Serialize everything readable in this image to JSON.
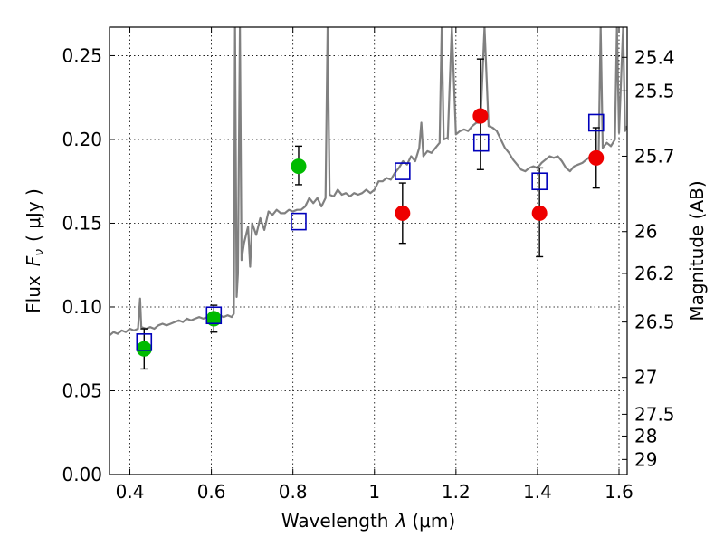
{
  "chart_data": {
    "type": "scatter",
    "xlabel_text": "Wavelength",
    "xlabel_symbol": "λ",
    "xlabel_unit": "(μm)",
    "ylabel_text": "Flux",
    "ylabel_symbol": "F",
    "ylabel_sub": "ν",
    "ylabel_unit": "( μJy )",
    "y2label": "Magnitude (AB)",
    "xlim": [
      0.35,
      1.62
    ],
    "ylim": [
      0.0,
      0.267
    ],
    "xticks": [
      0.4,
      0.6,
      0.8,
      1.0,
      1.2,
      1.4,
      1.6
    ],
    "xtick_labels": [
      "0.4",
      "0.6",
      "0.8",
      "1",
      "1.2",
      "1.4",
      "1.6"
    ],
    "yticks": [
      0.0,
      0.05,
      0.1,
      0.15,
      0.2,
      0.25
    ],
    "ytick_labels": [
      "0.00",
      "0.05",
      "0.10",
      "0.15",
      "0.20",
      "0.25"
    ],
    "mag_ticks": [
      {
        "label": "25.4",
        "flux": 0.249
      },
      {
        "label": "25.5",
        "flux": 0.229
      },
      {
        "label": "25.7",
        "flux": 0.19
      },
      {
        "label": "26",
        "flux": 0.145
      },
      {
        "label": "26.2",
        "flux": 0.12
      },
      {
        "label": "26.5",
        "flux": 0.091
      },
      {
        "label": "27",
        "flux": 0.058
      },
      {
        "label": "27.5",
        "flux": 0.036
      },
      {
        "label": "28",
        "flux": 0.023
      },
      {
        "label": "29",
        "flux": 0.009
      }
    ],
    "grid": true,
    "series": [
      {
        "marker": "circle",
        "color": "#00bb00",
        "points": [
          {
            "x": 0.435,
            "y": 0.075,
            "yerr_low": 0.063,
            "yerr_high": 0.087
          },
          {
            "x": 0.606,
            "y": 0.093,
            "yerr_low": 0.085,
            "yerr_high": 0.101
          },
          {
            "x": 0.814,
            "y": 0.184,
            "yerr_low": 0.173,
            "yerr_high": 0.196
          }
        ]
      },
      {
        "marker": "circle",
        "color": "#ee0000",
        "points": [
          {
            "x": 1.069,
            "y": 0.156,
            "yerr_low": 0.138,
            "yerr_high": 0.174
          },
          {
            "x": 1.26,
            "y": 0.214,
            "yerr_low": 0.182,
            "yerr_high": 0.248
          },
          {
            "x": 1.405,
            "y": 0.156,
            "yerr_low": 0.13,
            "yerr_high": 0.183
          },
          {
            "x": 1.544,
            "y": 0.189,
            "yerr_low": 0.171,
            "yerr_high": 0.207
          }
        ]
      },
      {
        "marker": "open-square",
        "color": "#0000bb",
        "points": [
          {
            "x": 0.435,
            "y": 0.079
          },
          {
            "x": 0.606,
            "y": 0.095
          },
          {
            "x": 0.814,
            "y": 0.151
          },
          {
            "x": 1.069,
            "y": 0.181
          },
          {
            "x": 1.262,
            "y": 0.198
          },
          {
            "x": 1.405,
            "y": 0.175
          },
          {
            "x": 1.544,
            "y": 0.21
          }
        ]
      }
    ],
    "sed_color": "#808080",
    "sed": [
      [
        0.35,
        0.083
      ],
      [
        0.36,
        0.085
      ],
      [
        0.37,
        0.084
      ],
      [
        0.38,
        0.086
      ],
      [
        0.39,
        0.085
      ],
      [
        0.4,
        0.087
      ],
      [
        0.41,
        0.086
      ],
      [
        0.42,
        0.087
      ],
      [
        0.425,
        0.105
      ],
      [
        0.428,
        0.088
      ],
      [
        0.44,
        0.087
      ],
      [
        0.45,
        0.088
      ],
      [
        0.46,
        0.087
      ],
      [
        0.47,
        0.089
      ],
      [
        0.48,
        0.09
      ],
      [
        0.49,
        0.089
      ],
      [
        0.5,
        0.09
      ],
      [
        0.51,
        0.091
      ],
      [
        0.52,
        0.092
      ],
      [
        0.53,
        0.091
      ],
      [
        0.54,
        0.093
      ],
      [
        0.55,
        0.092
      ],
      [
        0.56,
        0.093
      ],
      [
        0.57,
        0.094
      ],
      [
        0.58,
        0.093
      ],
      [
        0.59,
        0.094
      ],
      [
        0.6,
        0.095
      ],
      [
        0.61,
        0.094
      ],
      [
        0.62,
        0.095
      ],
      [
        0.63,
        0.094
      ],
      [
        0.64,
        0.095
      ],
      [
        0.65,
        0.094
      ],
      [
        0.655,
        0.096
      ],
      [
        0.658,
        0.267
      ],
      [
        0.662,
        0.106
      ],
      [
        0.665,
        0.12
      ],
      [
        0.67,
        0.267
      ],
      [
        0.674,
        0.128
      ],
      [
        0.68,
        0.138
      ],
      [
        0.69,
        0.148
      ],
      [
        0.695,
        0.124
      ],
      [
        0.7,
        0.15
      ],
      [
        0.71,
        0.143
      ],
      [
        0.72,
        0.153
      ],
      [
        0.73,
        0.146
      ],
      [
        0.74,
        0.157
      ],
      [
        0.75,
        0.155
      ],
      [
        0.76,
        0.158
      ],
      [
        0.77,
        0.156
      ],
      [
        0.78,
        0.156
      ],
      [
        0.79,
        0.158
      ],
      [
        0.8,
        0.157
      ],
      [
        0.81,
        0.158
      ],
      [
        0.82,
        0.158
      ],
      [
        0.83,
        0.16
      ],
      [
        0.84,
        0.165
      ],
      [
        0.85,
        0.162
      ],
      [
        0.86,
        0.165
      ],
      [
        0.87,
        0.16
      ],
      [
        0.88,
        0.165
      ],
      [
        0.885,
        0.267
      ],
      [
        0.89,
        0.167
      ],
      [
        0.9,
        0.166
      ],
      [
        0.91,
        0.17
      ],
      [
        0.92,
        0.167
      ],
      [
        0.93,
        0.168
      ],
      [
        0.94,
        0.166
      ],
      [
        0.95,
        0.168
      ],
      [
        0.96,
        0.167
      ],
      [
        0.97,
        0.168
      ],
      [
        0.98,
        0.17
      ],
      [
        0.99,
        0.168
      ],
      [
        1.0,
        0.17
      ],
      [
        1.01,
        0.175
      ],
      [
        1.02,
        0.175
      ],
      [
        1.03,
        0.177
      ],
      [
        1.04,
        0.176
      ],
      [
        1.05,
        0.18
      ],
      [
        1.06,
        0.183
      ],
      [
        1.07,
        0.187
      ],
      [
        1.08,
        0.185
      ],
      [
        1.09,
        0.19
      ],
      [
        1.1,
        0.187
      ],
      [
        1.11,
        0.195
      ],
      [
        1.115,
        0.21
      ],
      [
        1.12,
        0.19
      ],
      [
        1.13,
        0.193
      ],
      [
        1.14,
        0.192
      ],
      [
        1.15,
        0.195
      ],
      [
        1.16,
        0.198
      ],
      [
        1.165,
        0.267
      ],
      [
        1.17,
        0.2
      ],
      [
        1.18,
        0.201
      ],
      [
        1.19,
        0.267
      ],
      [
        1.2,
        0.203
      ],
      [
        1.21,
        0.205
      ],
      [
        1.22,
        0.206
      ],
      [
        1.23,
        0.205
      ],
      [
        1.24,
        0.208
      ],
      [
        1.25,
        0.21
      ],
      [
        1.26,
        0.21
      ],
      [
        1.27,
        0.267
      ],
      [
        1.28,
        0.208
      ],
      [
        1.29,
        0.207
      ],
      [
        1.3,
        0.205
      ],
      [
        1.31,
        0.2
      ],
      [
        1.32,
        0.195
      ],
      [
        1.33,
        0.192
      ],
      [
        1.34,
        0.188
      ],
      [
        1.35,
        0.185
      ],
      [
        1.36,
        0.182
      ],
      [
        1.37,
        0.181
      ],
      [
        1.38,
        0.183
      ],
      [
        1.39,
        0.184
      ],
      [
        1.4,
        0.183
      ],
      [
        1.41,
        0.186
      ],
      [
        1.42,
        0.188
      ],
      [
        1.43,
        0.19
      ],
      [
        1.44,
        0.189
      ],
      [
        1.45,
        0.19
      ],
      [
        1.46,
        0.187
      ],
      [
        1.47,
        0.183
      ],
      [
        1.48,
        0.181
      ],
      [
        1.49,
        0.184
      ],
      [
        1.5,
        0.185
      ],
      [
        1.51,
        0.186
      ],
      [
        1.52,
        0.188
      ],
      [
        1.53,
        0.19
      ],
      [
        1.54,
        0.19
      ],
      [
        1.55,
        0.192
      ],
      [
        1.555,
        0.267
      ],
      [
        1.56,
        0.195
      ],
      [
        1.57,
        0.198
      ],
      [
        1.58,
        0.196
      ],
      [
        1.59,
        0.2
      ],
      [
        1.595,
        0.267
      ],
      [
        1.6,
        0.204
      ],
      [
        1.61,
        0.267
      ],
      [
        1.615,
        0.205
      ],
      [
        1.62,
        0.208
      ]
    ]
  }
}
